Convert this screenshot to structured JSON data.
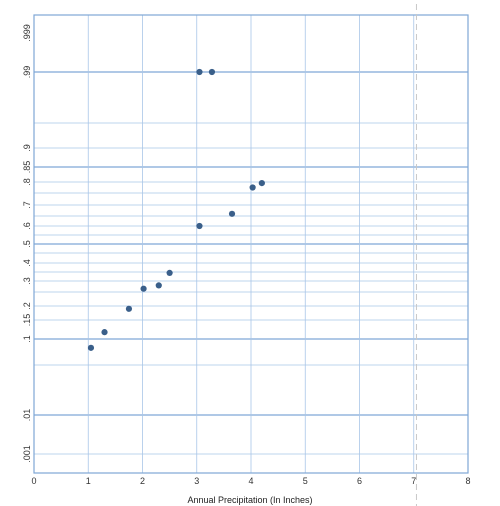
{
  "chart_data": {
    "type": "scatter",
    "title": "",
    "xlabel": "Annual Precipitation (In Inches)",
    "ylabel": "",
    "xlim": [
      0,
      8
    ],
    "x_ticks": [
      "0",
      "1",
      "2",
      "3",
      "4",
      "5",
      "6",
      "7",
      "8"
    ],
    "y_scale": "probability",
    "y_ticks": [
      ".001",
      ".01",
      ".1",
      ".15",
      ".2",
      ".3",
      ".4",
      ".5",
      ".6",
      ".7",
      ".8",
      ".85",
      ".9",
      ".99",
      ".999"
    ],
    "y_tick_values": [
      0.001,
      0.01,
      0.1,
      0.15,
      0.2,
      0.3,
      0.4,
      0.5,
      0.6,
      0.7,
      0.8,
      0.85,
      0.9,
      0.99,
      0.999
    ],
    "grid": true,
    "reference_line_x": 7.05,
    "colors": {
      "points": "#3a5f8a",
      "grid": "#a9c6e8",
      "frame": "#7fa7d6",
      "reference_line": "#c8c8c8"
    },
    "series": [
      {
        "x": [
          1.05,
          1.3,
          1.75,
          2.02,
          2.3,
          2.5,
          3.05,
          3.65,
          4.03,
          4.2,
          3.05,
          3.28
        ],
        "y": [
          0.083,
          0.118,
          0.19,
          0.265,
          0.28,
          0.345,
          0.6,
          0.66,
          0.775,
          0.795,
          0.99,
          0.99
        ]
      }
    ]
  }
}
